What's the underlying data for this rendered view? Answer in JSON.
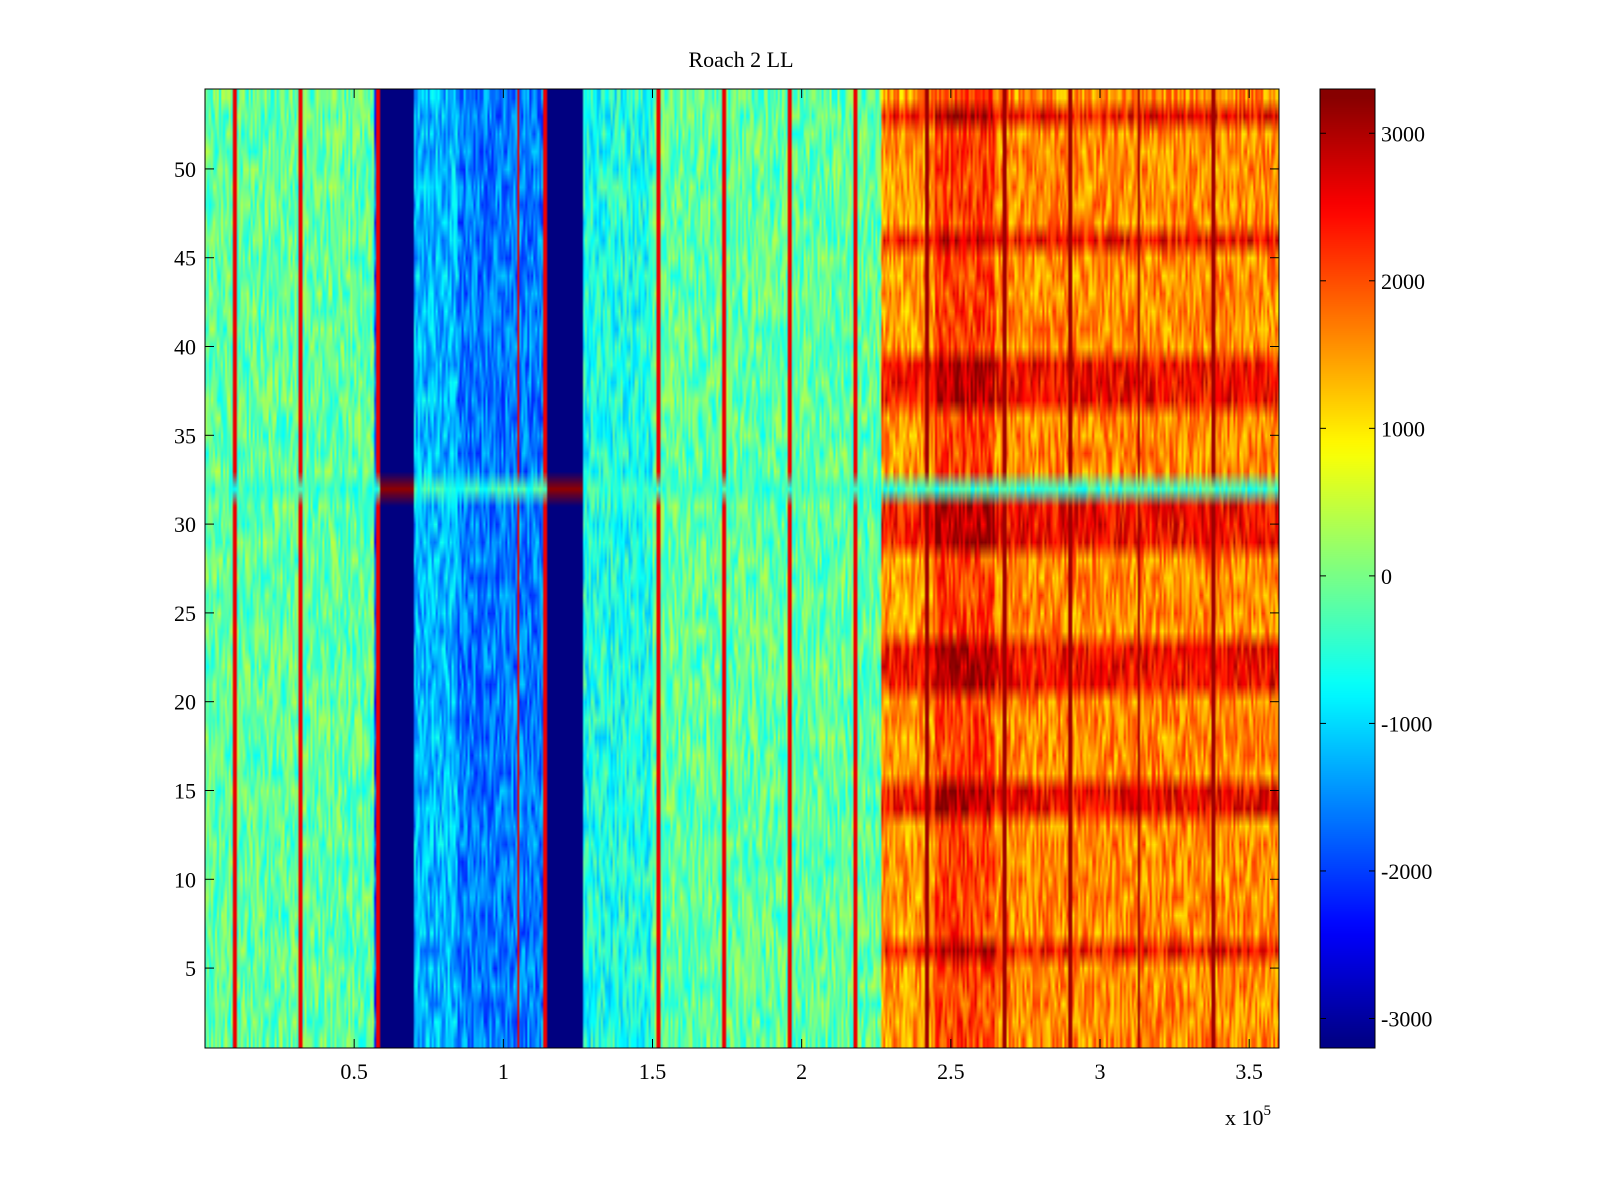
{
  "chart_data": {
    "type": "heatmap",
    "title": "Roach 2 LL",
    "xlabel": "",
    "ylabel": "",
    "x_multiplier_label": {
      "base": "x 10",
      "exponent": "5"
    },
    "xlim": [
      0,
      3.6
    ],
    "ylim": [
      0.5,
      54.5
    ],
    "n_rows": 54,
    "x_ticks": [
      0.5,
      1,
      1.5,
      2,
      2.5,
      3,
      3.5
    ],
    "x_tick_labels": [
      "0.5",
      "1",
      "1.5",
      "2",
      "2.5",
      "3",
      "3.5"
    ],
    "y_ticks": [
      5,
      10,
      15,
      20,
      25,
      30,
      35,
      40,
      45,
      50
    ],
    "y_tick_labels": [
      "5",
      "10",
      "15",
      "20",
      "25",
      "30",
      "35",
      "40",
      "45",
      "50"
    ],
    "colorbar": {
      "colormap": "jet",
      "clim": [
        -3200,
        3300
      ],
      "ticks": [
        -3000,
        -2000,
        -1000,
        0,
        1000,
        2000,
        3000
      ],
      "tick_labels": [
        "-3000",
        "-2000",
        "-1000",
        "0",
        "1000",
        "2000",
        "3000"
      ]
    },
    "column_segments": [
      {
        "x_range": [
          0.0,
          0.57
        ],
        "base_value": -150
      },
      {
        "x_range": [
          0.57,
          0.59
        ],
        "base_value": -1800
      },
      {
        "x_range": [
          0.59,
          0.7
        ],
        "base_value": -3200
      },
      {
        "x_range": [
          0.7,
          0.85
        ],
        "base_value": -1200
      },
      {
        "x_range": [
          0.85,
          1.15
        ],
        "base_value": -1600
      },
      {
        "x_range": [
          1.15,
          1.27
        ],
        "base_value": -3200
      },
      {
        "x_range": [
          1.27,
          1.5
        ],
        "base_value": -600
      },
      {
        "x_range": [
          1.5,
          2.27
        ],
        "base_value": -150
      },
      {
        "x_range": [
          2.27,
          2.45
        ],
        "base_value": 1500
      },
      {
        "x_range": [
          2.45,
          2.65
        ],
        "base_value": 2100
      },
      {
        "x_range": [
          2.65,
          3.6
        ],
        "base_value": 1600
      }
    ],
    "hot_rows": [
      6,
      14,
      15,
      21,
      22,
      23,
      29,
      30,
      31,
      37,
      38,
      39,
      46,
      53
    ],
    "anomaly_row": {
      "row": 32,
      "value_in_dark_bands": 3200
    },
    "vertical_spike_lines": [
      0.1,
      0.32,
      0.58,
      1.05,
      1.14,
      1.52,
      1.74,
      1.96,
      2.18,
      2.42,
      2.68,
      2.9,
      3.13,
      3.38
    ]
  }
}
